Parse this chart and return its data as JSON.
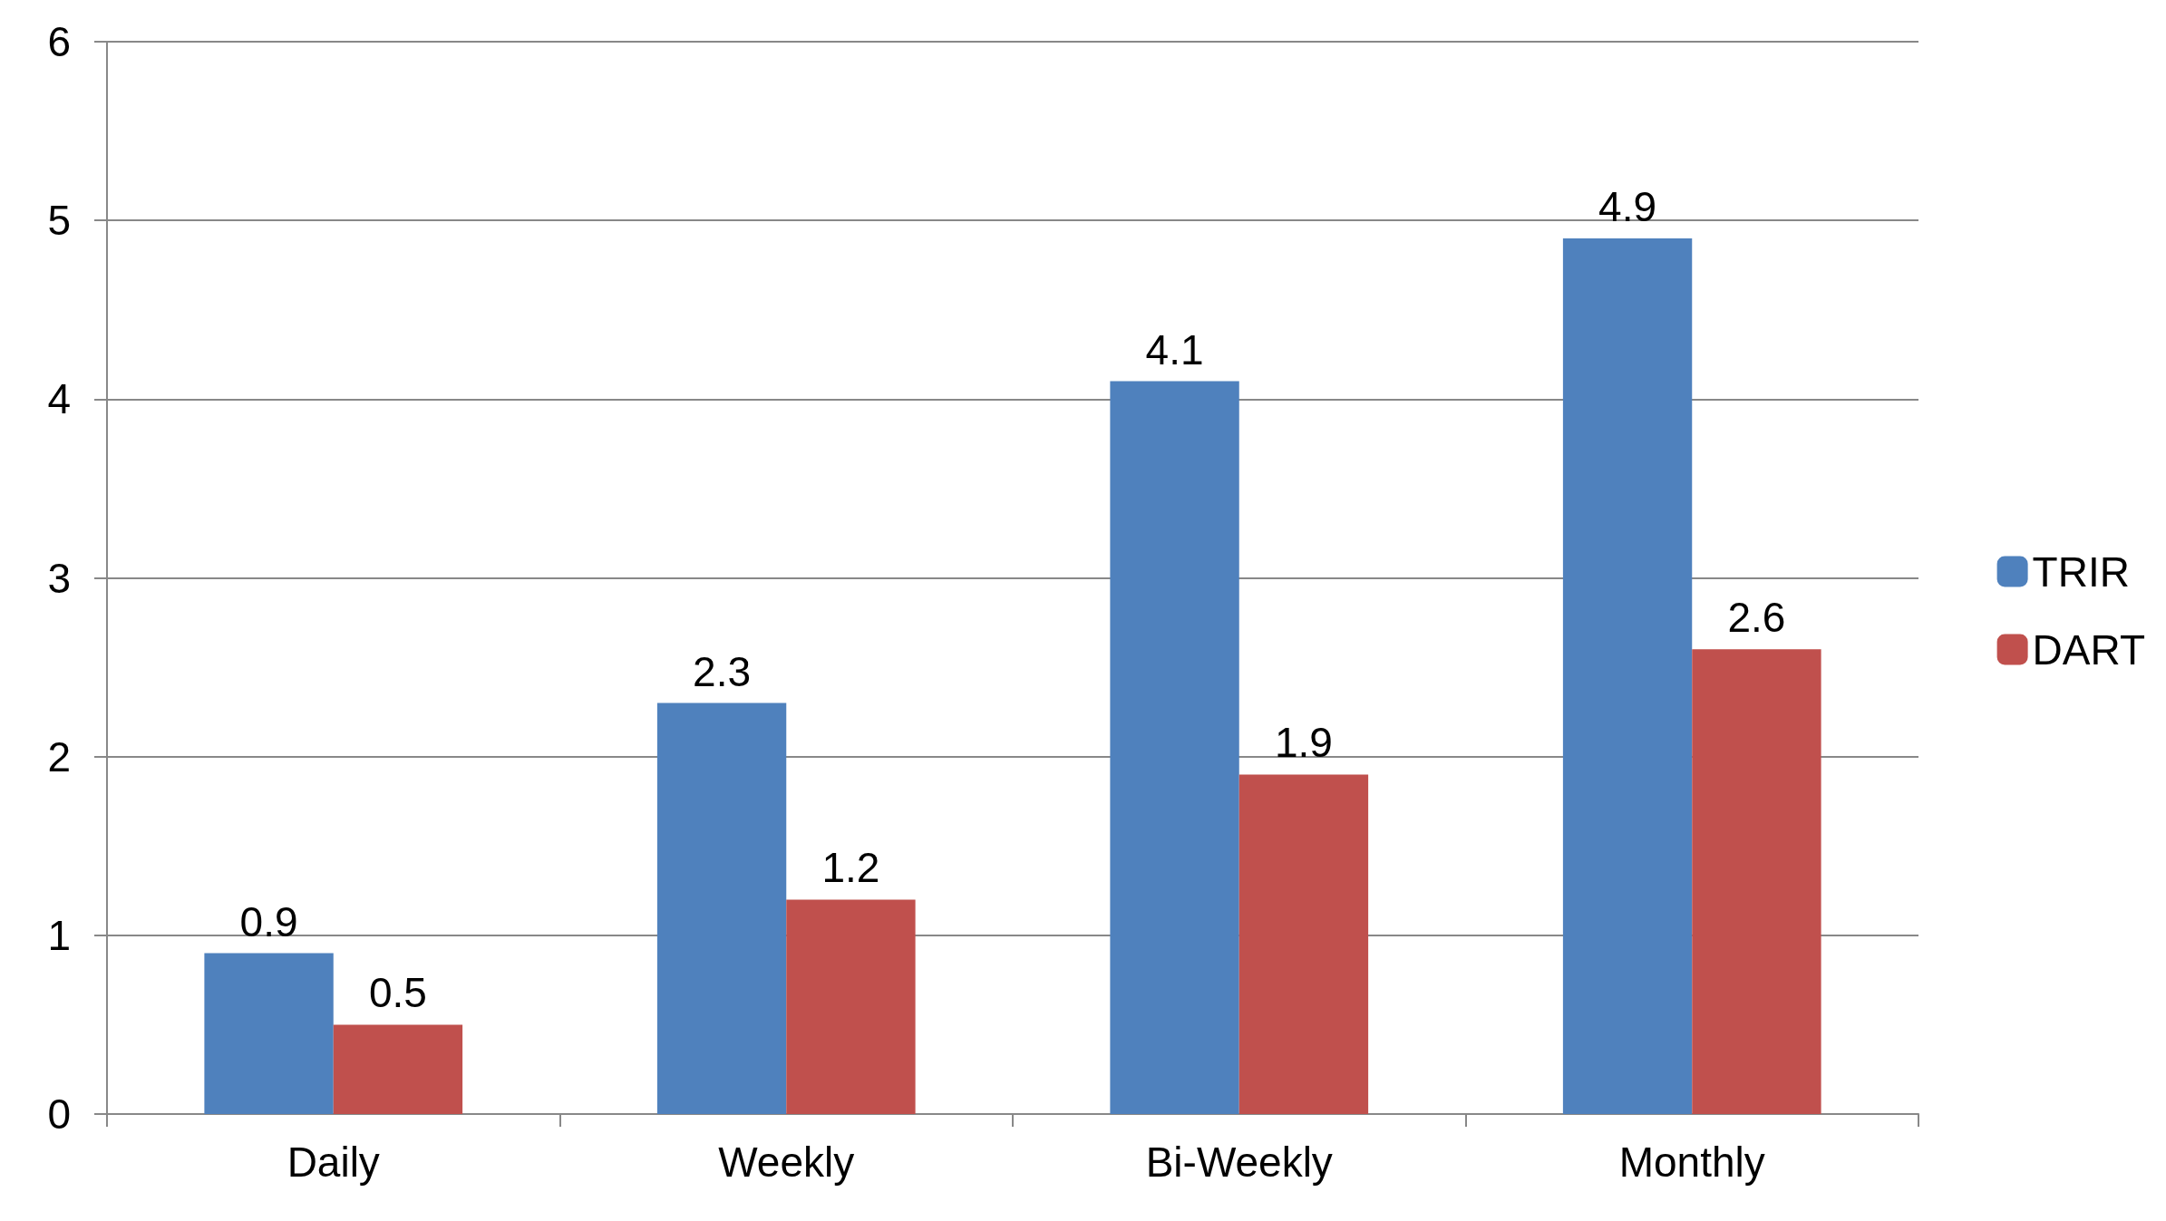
{
  "chart_data": {
    "type": "bar",
    "categories": [
      "Daily",
      "Weekly",
      "Bi-Weekly",
      "Monthly"
    ],
    "series": [
      {
        "name": "TRIR",
        "color": "#4f81bd",
        "values": [
          0.9,
          2.3,
          4.1,
          4.9
        ]
      },
      {
        "name": "DART",
        "color": "#c0504d",
        "values": [
          0.5,
          1.2,
          1.9,
          2.6
        ]
      }
    ],
    "ylim": [
      0,
      6
    ],
    "yticks": [
      0,
      1,
      2,
      3,
      4,
      5,
      6
    ],
    "grid": "y",
    "legend": "right",
    "data_labels": true
  }
}
